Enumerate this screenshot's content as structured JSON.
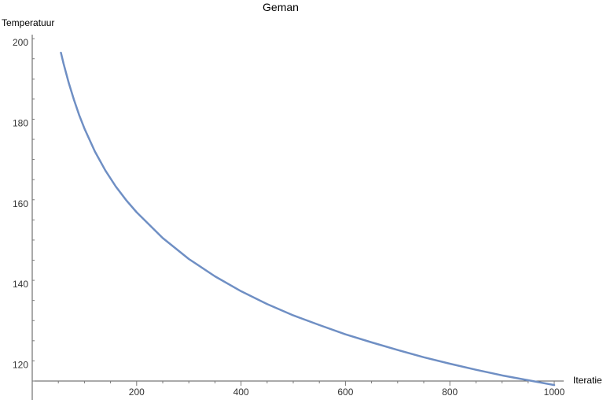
{
  "chart_data": {
    "type": "line",
    "title": "Geman",
    "xlabel": "Iteratie",
    "ylabel": "Temperatuur",
    "xlim": [
      0,
      1000
    ],
    "ylim": [
      116,
      202
    ],
    "xticks": [
      200,
      400,
      600,
      800,
      1000
    ],
    "yticks": [
      120,
      140,
      160,
      180,
      200
    ],
    "grid": false,
    "series": [
      {
        "color": "#6f8fc4",
        "x": [
          55,
          60,
          70,
          80,
          90,
          100,
          120,
          140,
          160,
          180,
          200,
          250,
          300,
          350,
          400,
          450,
          500,
          550,
          600,
          650,
          700,
          750,
          800,
          850,
          900,
          950,
          1000
        ],
        "y": [
          197.5,
          194.8,
          190.0,
          185.8,
          182.0,
          178.7,
          173.0,
          168.3,
          164.3,
          160.9,
          157.9,
          151.5,
          146.3,
          142.0,
          138.3,
          135.1,
          132.3,
          129.9,
          127.6,
          125.6,
          123.7,
          121.9,
          120.3,
          118.8,
          117.4,
          116.2,
          115.0
        ]
      }
    ]
  }
}
